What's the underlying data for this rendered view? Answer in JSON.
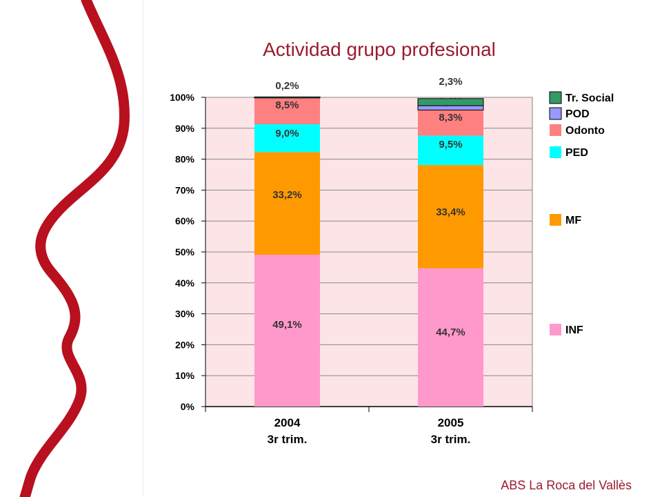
{
  "slide": {
    "title": "Actividad grupo profesional",
    "footer": "ABS La Roca del Vallès"
  },
  "chart_data": {
    "type": "bar",
    "stacked": true,
    "title": "Actividad grupo profesional",
    "categories": [
      [
        "2004",
        "3r trim."
      ],
      [
        "2005",
        "3r trim."
      ]
    ],
    "ylim": [
      0,
      100
    ],
    "yticks": [
      "0%",
      "10%",
      "20%",
      "30%",
      "40%",
      "50%",
      "60%",
      "70%",
      "80%",
      "90%",
      "100%"
    ],
    "grid": true,
    "legend_position": "right",
    "plot_background": "#fde4e6",
    "series": [
      {
        "name": "INF",
        "color": "#ff99cc",
        "values": [
          49.1,
          44.7
        ],
        "labels": [
          "49,1%",
          "44,7%"
        ]
      },
      {
        "name": "MF",
        "color": "#ff9900",
        "values": [
          33.2,
          33.4
        ],
        "labels": [
          "33,2%",
          "33,4%"
        ]
      },
      {
        "name": "PED",
        "color": "#00ffff",
        "values": [
          9.0,
          9.5
        ],
        "labels": [
          "9,0%",
          "9,5%"
        ]
      },
      {
        "name": "Odonto",
        "color": "#ff8080",
        "values": [
          8.5,
          8.3
        ],
        "labels": [
          "8,5%",
          "8,3%"
        ]
      },
      {
        "name": "POD",
        "color": "#9999ff",
        "values": [
          0,
          1.4
        ],
        "labels": [
          "",
          "1,4%"
        ]
      },
      {
        "name": "Tr. Social",
        "color": "#339966",
        "values": [
          0.2,
          2.3
        ],
        "labels": [
          "0,2%",
          "2,3%"
        ]
      }
    ]
  }
}
